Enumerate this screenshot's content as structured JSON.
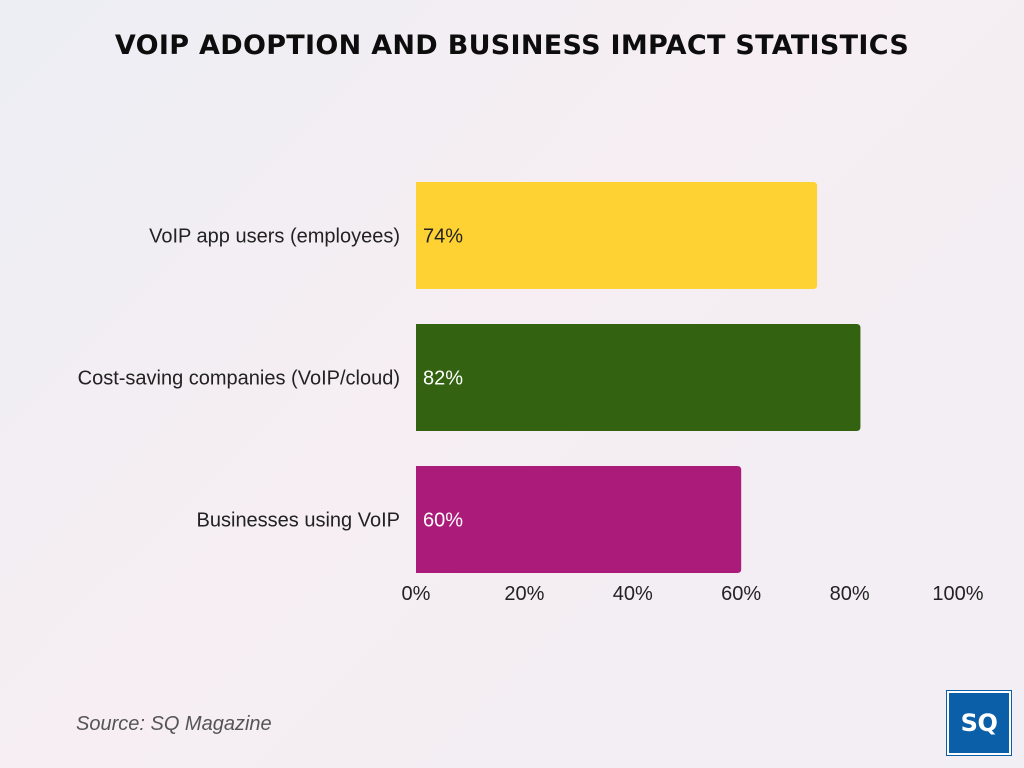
{
  "chart_data": {
    "type": "bar",
    "orientation": "horizontal",
    "title": "VOIP ADOPTION AND BUSINESS IMPACT STATISTICS",
    "categories": [
      "VoIP app users (employees)",
      "Cost-saving companies (VoIP/cloud)",
      "Businesses using VoIP"
    ],
    "values": [
      74,
      82,
      60
    ],
    "value_labels": [
      "74%",
      "82%",
      "60%"
    ],
    "colors": [
      "#ffd233",
      "#336311",
      "#ab1c7a"
    ],
    "label_colors": [
      "#222222",
      "#ffffff",
      "#ffffff"
    ],
    "xlim": [
      0,
      100
    ],
    "xticks": [
      0,
      20,
      40,
      60,
      80,
      100
    ],
    "xtick_labels": [
      "0%",
      "20%",
      "40%",
      "60%",
      "80%",
      "100%"
    ],
    "xlabel": "",
    "ylabel": "",
    "grid": false
  },
  "footer": {
    "source": "Source: SQ Magazine",
    "logo_text": "SQ"
  }
}
